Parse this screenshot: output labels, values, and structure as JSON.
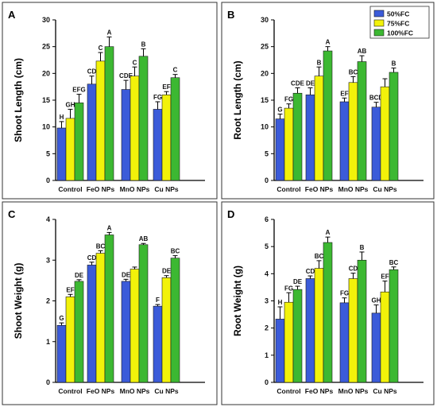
{
  "series_colors": {
    "50%FC": "#3b5bd9",
    "75%FC": "#f2f20a",
    "100%FC": "#3cb832"
  },
  "legend": {
    "entries": [
      "50%FC",
      "75%FC",
      "100%FC"
    ],
    "placement": "top-right of panel B"
  },
  "chart_data": [
    {
      "panel": "A",
      "type": "bar",
      "ylabel": "Shoot Length (cm)",
      "ylim": [
        0,
        30
      ],
      "yticks": [
        0,
        5,
        10,
        15,
        20,
        25,
        30
      ],
      "categories": [
        "Control",
        "FeO NPs",
        "MnO NPs",
        "Cu NPs"
      ],
      "series": [
        {
          "name": "50%FC",
          "values": [
            9.8,
            18.0,
            17.0,
            13.3
          ],
          "errors": [
            1.2,
            1.5,
            1.7,
            1.4
          ],
          "labels": [
            "H",
            "CD",
            "CDE",
            "FG"
          ]
        },
        {
          "name": "75%FC",
          "values": [
            11.6,
            22.3,
            19.5,
            16.0
          ],
          "errors": [
            1.7,
            1.6,
            1.7,
            0.6
          ],
          "labels": [
            "GH",
            "C",
            "C",
            "EF"
          ]
        },
        {
          "name": "100%FC",
          "values": [
            14.5,
            25.0,
            23.2,
            19.2
          ],
          "errors": [
            1.6,
            1.8,
            1.4,
            0.6
          ],
          "labels": [
            "EFG",
            "A",
            "B",
            "C"
          ]
        }
      ]
    },
    {
      "panel": "B",
      "type": "bar",
      "ylabel": "Root Length (cm)",
      "ylim": [
        0,
        30
      ],
      "yticks": [
        0,
        5,
        10,
        15,
        20,
        25,
        30
      ],
      "categories": [
        "Control",
        "FeO NPs",
        "MnO NPs",
        "Cu NPs"
      ],
      "series": [
        {
          "name": "50%FC",
          "values": [
            11.5,
            16.0,
            14.7,
            13.7
          ],
          "errors": [
            0.9,
            1.3,
            0.7,
            0.9
          ],
          "labels": [
            "G",
            "DE",
            "EF",
            "BCD"
          ]
        },
        {
          "name": "75%FC",
          "values": [
            13.5,
            19.5,
            18.3,
            17.5
          ],
          "errors": [
            0.8,
            1.7,
            1.1,
            1.5
          ],
          "labels": [
            "FG",
            "B",
            "BC",
            ""
          ]
        },
        {
          "name": "100%FC",
          "values": [
            16.3,
            24.2,
            22.2,
            20.2
          ],
          "errors": [
            1.0,
            0.8,
            1.1,
            0.8
          ],
          "labels": [
            "CDE",
            "A",
            "AB",
            "B"
          ]
        }
      ]
    },
    {
      "panel": "C",
      "type": "bar",
      "ylabel": "Shoot Weight (g)",
      "ylim": [
        0,
        4
      ],
      "yticks": [
        0,
        1,
        2,
        3,
        4
      ],
      "categories": [
        "Control",
        "FeO NPs",
        "MnO NPs",
        "Cu NPs"
      ],
      "series": [
        {
          "name": "50%FC",
          "values": [
            1.4,
            2.88,
            2.48,
            1.87
          ],
          "errors": [
            0.06,
            0.07,
            0.05,
            0.04
          ],
          "labels": [
            "G",
            "CD",
            "DE",
            "F"
          ]
        },
        {
          "name": "75%FC",
          "values": [
            2.1,
            3.17,
            2.78,
            2.57
          ],
          "errors": [
            0.06,
            0.06,
            0.05,
            0.05
          ],
          "labels": [
            "EF",
            "BC",
            "",
            "DE"
          ]
        },
        {
          "name": "100%FC",
          "values": [
            2.48,
            3.62,
            3.38,
            3.05
          ],
          "errors": [
            0.04,
            0.06,
            0.03,
            0.06
          ],
          "labels": [
            "DE",
            "A",
            "AB",
            "BC"
          ]
        }
      ]
    },
    {
      "panel": "D",
      "type": "bar",
      "ylabel": "Root Weight (g)",
      "ylim": [
        0,
        6
      ],
      "yticks": [
        0,
        1,
        2,
        3,
        4,
        5,
        6
      ],
      "categories": [
        "Control",
        "FeO NPs",
        "MnO NPs",
        "Cu NPs"
      ],
      "series": [
        {
          "name": "50%FC",
          "values": [
            2.33,
            3.82,
            2.93,
            2.55
          ],
          "errors": [
            0.45,
            0.1,
            0.18,
            0.3
          ],
          "labels": [
            "H",
            "CD",
            "FG",
            "GH"
          ]
        },
        {
          "name": "75%FC",
          "values": [
            2.95,
            4.2,
            3.82,
            3.33
          ],
          "errors": [
            0.35,
            0.28,
            0.2,
            0.4
          ],
          "labels": [
            "FG",
            "BC",
            "CD",
            "EF"
          ]
        },
        {
          "name": "100%FC",
          "values": [
            3.42,
            5.15,
            4.5,
            4.15
          ],
          "errors": [
            0.12,
            0.2,
            0.3,
            0.1
          ],
          "labels": [
            "DE",
            "A",
            "B",
            "BC"
          ]
        }
      ]
    }
  ]
}
